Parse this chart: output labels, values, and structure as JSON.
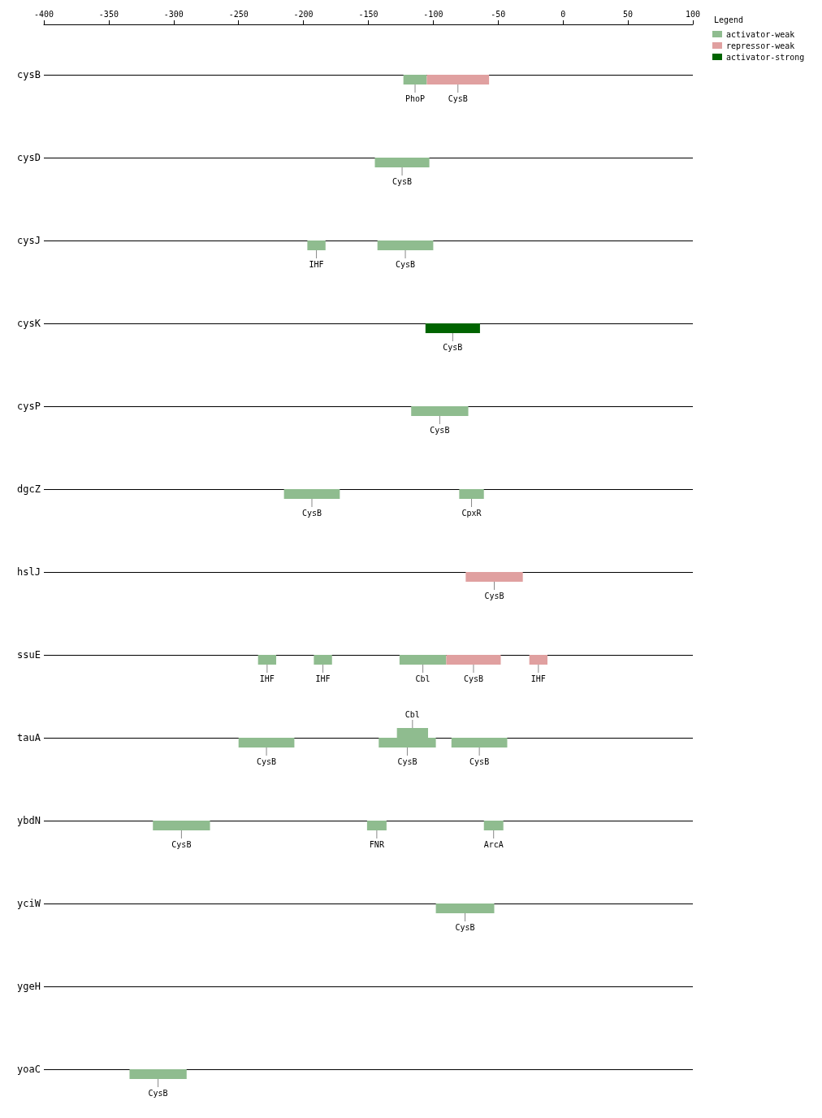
{
  "chart_data": {
    "type": "bar",
    "orientation": "horizontal",
    "legend_title": "Legend",
    "legend": "top right",
    "grid": "y",
    "categories": [
      "cysB",
      "cysD",
      "cysJ",
      "cysK",
      "cysP",
      "dgcZ",
      "hslJ",
      "ssuE",
      "tauA",
      "ybdN",
      "yciW",
      "ygeH",
      "yoaC"
    ],
    "xlim": [
      -400,
      100
    ],
    "xticks": [
      -400,
      -350,
      -300,
      -250,
      -200,
      -150,
      -100,
      -50,
      0,
      50,
      100
    ],
    "series": [
      {
        "name": "activator-weak",
        "color": "#8fbc8f",
        "base": [
          -123,
          -145,
          -197,
          null,
          -117,
          -215,
          null,
          -235,
          -128,
          -316,
          -98,
          null,
          -334
        ],
        "values": [
          18,
          42,
          14,
          null,
          44,
          43,
          null,
          14,
          24,
          44,
          45,
          null,
          44
        ],
        "value_labels": [
          "PhoP",
          "CysB",
          "IHF",
          null,
          "CysB",
          "CysB",
          null,
          "IHF",
          "Cbl",
          "CysB",
          "CysB",
          null,
          "CysB"
        ]
      },
      {
        "color": "#8fbc8f",
        "base": [
          null,
          null,
          -143,
          null,
          null,
          -80,
          null,
          -192,
          -250,
          -151,
          null,
          null,
          null
        ],
        "values": [
          null,
          null,
          43,
          null,
          null,
          19,
          null,
          14,
          43,
          15,
          null,
          null,
          null
        ],
        "value_labels": [
          null,
          null,
          "CysB",
          null,
          null,
          "CpxR",
          null,
          "IHF",
          "CysB",
          "FNR",
          null,
          null,
          null
        ]
      },
      {
        "color": "#8fbc8f",
        "base": [
          null,
          null,
          null,
          null,
          null,
          null,
          null,
          -126,
          -142,
          -61,
          null,
          null,
          null
        ],
        "values": [
          null,
          null,
          null,
          null,
          null,
          null,
          null,
          36,
          44,
          15,
          null,
          null,
          null
        ],
        "value_labels": [
          null,
          null,
          null,
          null,
          null,
          null,
          null,
          "Cbl",
          "CysB",
          "ArcA",
          null,
          null,
          null
        ]
      },
      {
        "color": "#8fbc8f",
        "base": [
          null,
          null,
          null,
          null,
          null,
          null,
          null,
          null,
          -86,
          null,
          null,
          null,
          null
        ],
        "values": [
          null,
          null,
          null,
          null,
          null,
          null,
          null,
          null,
          43,
          null,
          null,
          null,
          null
        ],
        "value_labels": [
          null,
          null,
          null,
          null,
          null,
          null,
          null,
          null,
          "CysB",
          null,
          null,
          null,
          null
        ]
      },
      {
        "name": "repressor-weak",
        "color": "#e0a0a0",
        "base": [
          -105,
          null,
          null,
          null,
          null,
          null,
          -75,
          -90,
          null,
          null,
          null,
          null,
          null
        ],
        "values": [
          48,
          null,
          null,
          null,
          null,
          null,
          44,
          42,
          null,
          null,
          null,
          null,
          null
        ],
        "value_labels": [
          "CysB",
          null,
          null,
          null,
          null,
          null,
          "CysB",
          "CysB",
          null,
          null,
          null,
          null,
          null
        ]
      },
      {
        "color": "#e0a0a0",
        "base": [
          null,
          null,
          null,
          null,
          null,
          null,
          null,
          -26,
          null,
          null,
          null,
          null,
          null
        ],
        "values": [
          null,
          null,
          null,
          null,
          null,
          null,
          null,
          14,
          null,
          null,
          null,
          null,
          null
        ],
        "value_labels": [
          null,
          null,
          null,
          null,
          null,
          null,
          null,
          "IHF",
          null,
          null,
          null,
          null,
          null
        ]
      },
      {
        "name": "activator-strong",
        "color": "#006400",
        "base": [
          null,
          null,
          null,
          -106,
          null,
          null,
          null,
          null,
          null,
          null,
          null,
          null,
          null
        ],
        "values": [
          null,
          null,
          null,
          42,
          null,
          null,
          null,
          null,
          null,
          null,
          null,
          null,
          null
        ],
        "value_labels": [
          null,
          null,
          null,
          "CysB",
          null,
          null,
          null,
          null,
          null,
          null,
          null,
          null,
          null
        ]
      }
    ]
  }
}
